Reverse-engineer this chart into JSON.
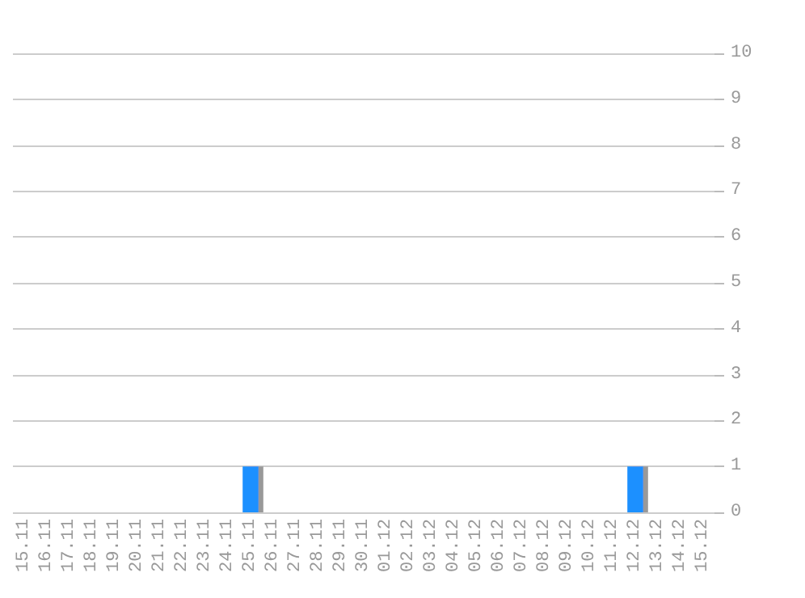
{
  "chart_data": {
    "type": "bar",
    "categories": [
      "15.11",
      "16.11",
      "17.11",
      "18.11",
      "19.11",
      "20.11",
      "21.11",
      "22.11",
      "23.11",
      "24.11",
      "25.11",
      "26.11",
      "27.11",
      "28.11",
      "29.11",
      "30.11",
      "01.12",
      "02.12",
      "03.12",
      "04.12",
      "05.12",
      "06.12",
      "07.12",
      "08.12",
      "09.12",
      "10.12",
      "11.12",
      "12.12",
      "13.12",
      "14.12",
      "15.12"
    ],
    "values": [
      0,
      0,
      0,
      0,
      0,
      0,
      0,
      0,
      0,
      0,
      1,
      0,
      0,
      0,
      0,
      0,
      0,
      0,
      0,
      0,
      0,
      0,
      0,
      0,
      0,
      0,
      0,
      1,
      0,
      0,
      0
    ],
    "color": "#1e90ff",
    "ylim": [
      0,
      10
    ],
    "yticks": [
      0,
      1,
      2,
      3,
      4,
      5,
      6,
      7,
      8,
      9,
      10
    ],
    "grid": "y"
  }
}
